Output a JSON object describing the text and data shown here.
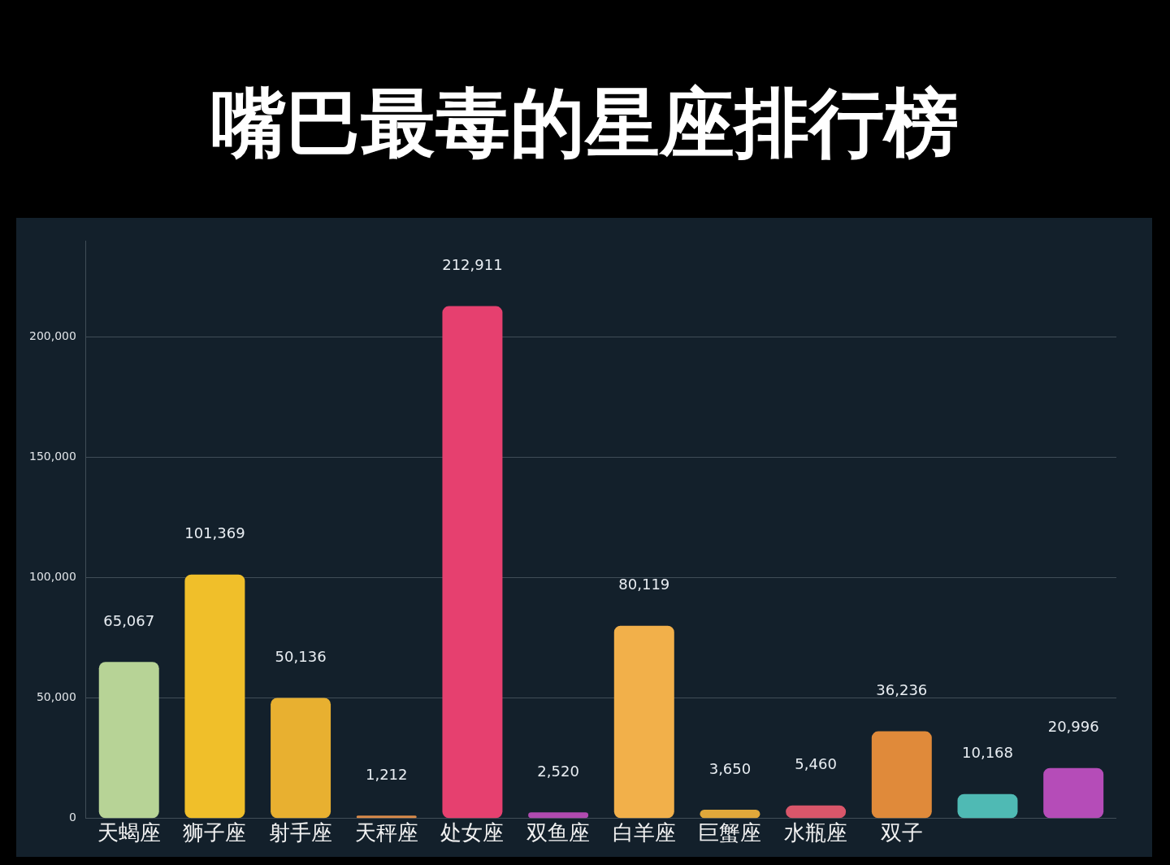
{
  "chart_data": {
    "type": "bar",
    "title": "嘴巴最毒的星座排行榜",
    "categories": [
      "天蝎座",
      "狮子座",
      "射手座",
      "天秤座",
      "处女座",
      "双鱼座",
      "白羊座",
      "巨蟹座",
      "水瓶座",
      "双子",
      null,
      null
    ],
    "values": [
      65067,
      101369,
      50136,
      1212,
      212911,
      2520,
      80119,
      3650,
      5460,
      36236,
      10168,
      20996
    ],
    "value_labels": [
      "65,067",
      "101,369",
      "50,136",
      "1,212",
      "212,911",
      "2,520",
      "80,119",
      "3,650",
      "5,460",
      "36,236",
      "10,168",
      "20,996"
    ],
    "colors": [
      "#b7d396",
      "#f0bf2a",
      "#e8b030",
      "#d98a4a",
      "#e6406f",
      "#b04ab0",
      "#f2b04a",
      "#e0a83a",
      "#d9566a",
      "#e08a3a",
      "#4fbab4",
      "#b54cb8"
    ],
    "ylim": [
      0,
      240000
    ],
    "yticks": [
      0,
      {
        "value": 50000,
        "label": "50,000"
      },
      {
        "value": 100000,
        "label": "100,000"
      },
      {
        "value": 150000,
        "label": "150,000"
      },
      {
        "value": 200000,
        "label": "200,000"
      }
    ],
    "grid": "y",
    "legend": false
  }
}
